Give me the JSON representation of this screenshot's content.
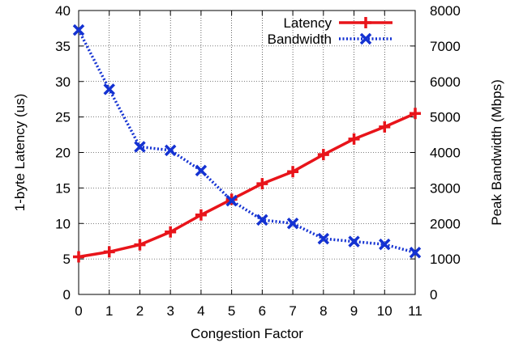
{
  "chart_data": {
    "type": "line",
    "title": "",
    "xlabel": "Congestion Factor",
    "ylabel": "1-byte Latency (us)",
    "y2label": "Peak Bandwidth (Mbps)",
    "x": [
      0,
      1,
      2,
      3,
      4,
      5,
      6,
      7,
      8,
      9,
      10,
      11
    ],
    "xlim": [
      0,
      11
    ],
    "ylim": [
      0,
      40
    ],
    "y2lim": [
      0,
      8000
    ],
    "xticks": [
      "0",
      "1",
      "2",
      "3",
      "4",
      "5",
      "6",
      "7",
      "8",
      "9",
      "10",
      "11"
    ],
    "yticks": [
      "0",
      "5",
      "10",
      "15",
      "20",
      "25",
      "30",
      "35",
      "40"
    ],
    "y2ticks": [
      "0",
      "1000",
      "2000",
      "3000",
      "4000",
      "5000",
      "6000",
      "7000",
      "8000"
    ],
    "grid": true,
    "legend": "top-right",
    "series": [
      {
        "name": "Latency",
        "axis": "left",
        "color": "#e8141a",
        "marker": "plus",
        "line": "solid",
        "values": [
          5.3,
          6.0,
          7.0,
          8.8,
          11.2,
          13.4,
          15.6,
          17.3,
          19.7,
          21.9,
          23.6,
          25.5
        ]
      },
      {
        "name": "Bandwidth",
        "axis": "right",
        "color": "#1432d2",
        "marker": "x",
        "line": "dotted",
        "values": [
          7450,
          5780,
          4160,
          4060,
          3490,
          2640,
          2100,
          2000,
          1570,
          1490,
          1410,
          1180
        ]
      }
    ]
  }
}
